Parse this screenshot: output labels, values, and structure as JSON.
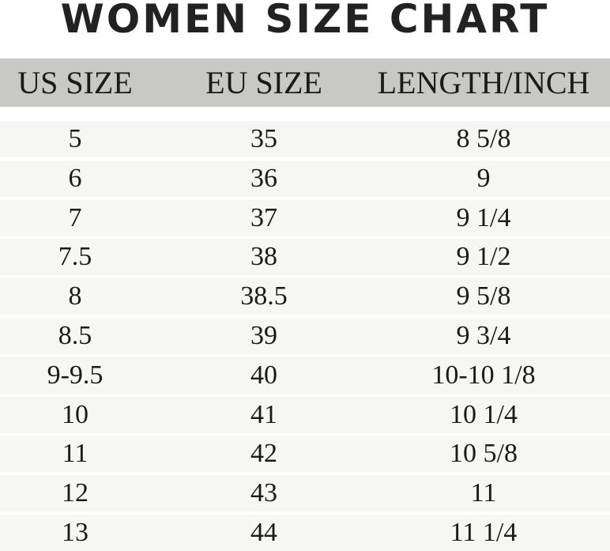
{
  "chart_data": {
    "type": "table",
    "title": "WOMEN SIZE CHART",
    "columns": [
      "US SIZE",
      "EU SIZE",
      "LENGTH/INCH"
    ],
    "rows": [
      [
        "5",
        "35",
        "8 5/8"
      ],
      [
        "6",
        "36",
        "9"
      ],
      [
        "7",
        "37",
        "9 1/4"
      ],
      [
        "7.5",
        "38",
        "9 1/2"
      ],
      [
        "8",
        "38.5",
        "9 5/8"
      ],
      [
        "8.5",
        "39",
        "9 3/4"
      ],
      [
        "9-9.5",
        "40",
        "10-10 1/8"
      ],
      [
        "10",
        "41",
        "10 1/4"
      ],
      [
        "11",
        "42",
        "10 5/8"
      ],
      [
        "12",
        "43",
        "11"
      ],
      [
        "13",
        "44",
        "11 1/4"
      ]
    ],
    "colors": {
      "header_bg": "#c8c8c6",
      "row_bg": "#f6f6f4"
    }
  }
}
